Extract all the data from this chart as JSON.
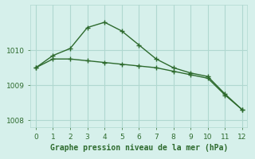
{
  "title": "Graphe pression niveau de la mer (hPa)",
  "background_color": "#d6f0eb",
  "line_color": "#2d6a2d",
  "grid_color": "#b0d8d0",
  "line1_x": [
    0,
    1,
    2,
    3,
    4,
    5,
    6,
    7,
    8,
    9,
    10,
    11,
    12
  ],
  "line1_y": [
    1009.5,
    1009.85,
    1010.05,
    1010.65,
    1010.8,
    1010.55,
    1010.15,
    1009.75,
    1009.5,
    1009.35,
    1009.25,
    1008.75,
    1008.3
  ],
  "line2_x": [
    0,
    1,
    2,
    3,
    4,
    5,
    6,
    7,
    8,
    9,
    10,
    11,
    12
  ],
  "line2_y": [
    1009.5,
    1009.75,
    1009.75,
    1009.7,
    1009.65,
    1009.6,
    1009.55,
    1009.5,
    1009.4,
    1009.3,
    1009.2,
    1008.72,
    1008.3
  ],
  "ylim": [
    1007.8,
    1011.3
  ],
  "xlim": [
    -0.3,
    12.3
  ],
  "yticks": [
    1008,
    1009,
    1010
  ],
  "xticks": [
    0,
    1,
    2,
    3,
    4,
    5,
    6,
    7,
    8,
    9,
    10,
    11,
    12
  ],
  "title_fontsize": 7.0,
  "tick_fontsize": 6.5
}
